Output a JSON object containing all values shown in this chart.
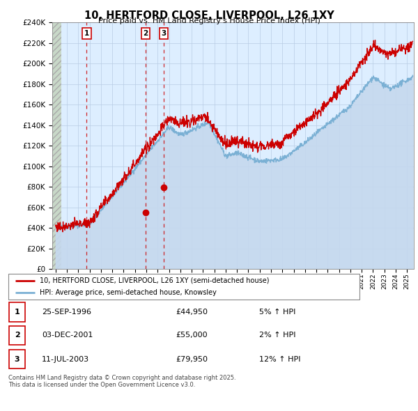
{
  "title": "10, HERTFORD CLOSE, LIVERPOOL, L26 1XY",
  "subtitle": "Price paid vs. HM Land Registry's House Price Index (HPI)",
  "ylim": [
    0,
    240000
  ],
  "ytick_step": 20000,
  "xlim_start": 1993.7,
  "xlim_end": 2025.6,
  "sale_color": "#cc0000",
  "hpi_color": "#7ab0d4",
  "chart_bg": "#ddeeff",
  "hatch_color": "#c8c8c8",
  "legend_label_sale": "10, HERTFORD CLOSE, LIVERPOOL, L26 1XY (semi-detached house)",
  "legend_label_hpi": "HPI: Average price, semi-detached house, Knowsley",
  "purchases": [
    {
      "date": 1996.73,
      "price": 44950,
      "label": "1"
    },
    {
      "date": 2001.92,
      "price": 55000,
      "label": "2"
    },
    {
      "date": 2003.52,
      "price": 79950,
      "label": "3"
    }
  ],
  "purchase_table": [
    {
      "num": "1",
      "date": "25-SEP-1996",
      "price": "£44,950",
      "hpi": "5% ↑ HPI"
    },
    {
      "num": "2",
      "date": "03-DEC-2001",
      "price": "£55,000",
      "hpi": "2% ↑ HPI"
    },
    {
      "num": "3",
      "date": "11-JUL-2003",
      "price": "£79,950",
      "hpi": "12% ↑ HPI"
    }
  ],
  "copyright_text": "Contains HM Land Registry data © Crown copyright and database right 2025.\nThis data is licensed under the Open Government Licence v3.0."
}
